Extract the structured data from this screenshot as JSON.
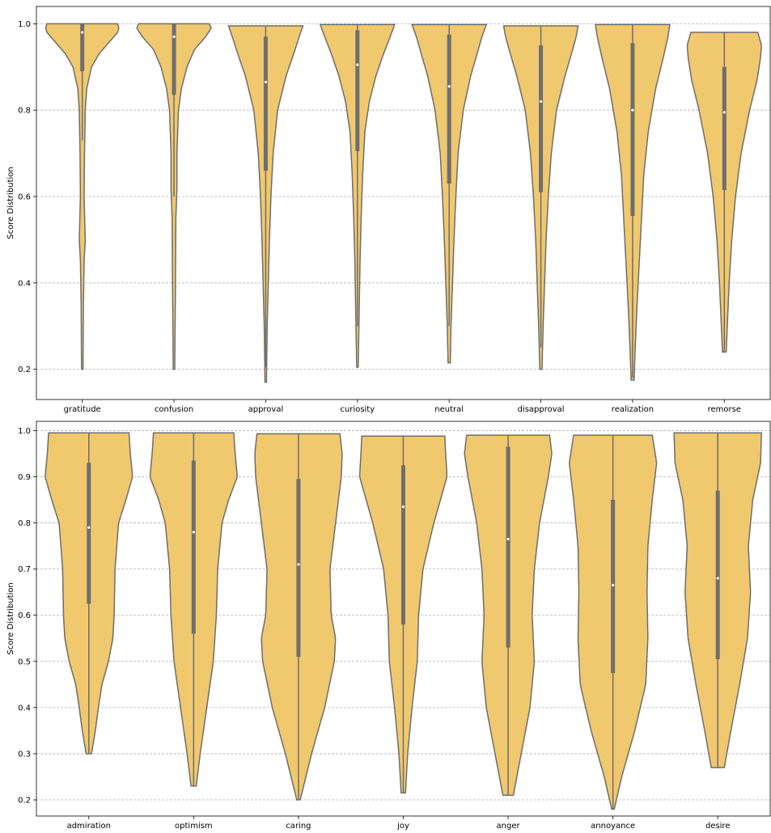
{
  "colors": {
    "violin_fill": "#f0c86e",
    "violin_edge": "#6e6e6e",
    "box": "#6e6e6e",
    "median_dot": "#ffffff",
    "grid": "#b0b0b0"
  },
  "chart_data": [
    {
      "type": "violin",
      "ylabel": "Score Distribution",
      "ylim": [
        0.13,
        1.04
      ],
      "yticks": [
        0.2,
        0.4,
        0.6,
        0.8,
        1.0
      ],
      "ytick_labels": [
        "0.2",
        "0.4",
        "0.6",
        "0.8",
        "1.0"
      ],
      "grid": "y-dashed",
      "categories": [
        "gratitude",
        "confusion",
        "approval",
        "curiosity",
        "neutral",
        "disapproval",
        "realization",
        "remorse"
      ],
      "series": [
        {
          "category": "gratitude",
          "min": 0.2,
          "q1": 0.89,
          "median": 0.98,
          "q3": 1.0,
          "max": 1.0,
          "whisker_low": 0.73,
          "whisker_high": 1.0,
          "density": [
            [
              0.2,
              0.02
            ],
            [
              0.35,
              0.03
            ],
            [
              0.45,
              0.05
            ],
            [
              0.5,
              0.08
            ],
            [
              0.6,
              0.05
            ],
            [
              0.7,
              0.06
            ],
            [
              0.8,
              0.08
            ],
            [
              0.85,
              0.12
            ],
            [
              0.9,
              0.25
            ],
            [
              0.93,
              0.45
            ],
            [
              0.96,
              0.75
            ],
            [
              0.98,
              0.95
            ],
            [
              0.995,
              1.0
            ],
            [
              1.0,
              0.95
            ]
          ]
        },
        {
          "category": "confusion",
          "min": 0.2,
          "q1": 0.835,
          "median": 0.97,
          "q3": 1.0,
          "max": 1.0,
          "whisker_low": 0.6,
          "whisker_high": 1.0,
          "density": [
            [
              0.2,
              0.02
            ],
            [
              0.4,
              0.04
            ],
            [
              0.55,
              0.05
            ],
            [
              0.62,
              0.08
            ],
            [
              0.7,
              0.08
            ],
            [
              0.8,
              0.12
            ],
            [
              0.85,
              0.2
            ],
            [
              0.9,
              0.35
            ],
            [
              0.94,
              0.55
            ],
            [
              0.97,
              0.85
            ],
            [
              0.99,
              1.0
            ],
            [
              1.0,
              0.95
            ]
          ]
        },
        {
          "category": "approval",
          "min": 0.17,
          "q1": 0.66,
          "median": 0.865,
          "q3": 0.97,
          "max": 0.995,
          "whisker_low": 0.205,
          "whisker_high": 0.995,
          "density": [
            [
              0.17,
              0.02
            ],
            [
              0.3,
              0.04
            ],
            [
              0.4,
              0.07
            ],
            [
              0.5,
              0.1
            ],
            [
              0.6,
              0.14
            ],
            [
              0.7,
              0.2
            ],
            [
              0.8,
              0.32
            ],
            [
              0.88,
              0.55
            ],
            [
              0.93,
              0.75
            ],
            [
              0.97,
              0.9
            ],
            [
              0.995,
              1.0
            ]
          ]
        },
        {
          "category": "curiosity",
          "min": 0.205,
          "q1": 0.705,
          "median": 0.905,
          "q3": 0.985,
          "max": 0.998,
          "whisker_low": 0.3,
          "whisker_high": 0.998,
          "density": [
            [
              0.205,
              0.02
            ],
            [
              0.3,
              0.04
            ],
            [
              0.45,
              0.07
            ],
            [
              0.55,
              0.1
            ],
            [
              0.65,
              0.14
            ],
            [
              0.75,
              0.2
            ],
            [
              0.82,
              0.32
            ],
            [
              0.88,
              0.5
            ],
            [
              0.93,
              0.7
            ],
            [
              0.97,
              0.88
            ],
            [
              0.998,
              1.0
            ]
          ]
        },
        {
          "category": "neutral",
          "min": 0.215,
          "q1": 0.63,
          "median": 0.855,
          "q3": 0.975,
          "max": 0.998,
          "whisker_low": 0.3,
          "whisker_high": 0.998,
          "density": [
            [
              0.215,
              0.03
            ],
            [
              0.3,
              0.05
            ],
            [
              0.4,
              0.09
            ],
            [
              0.5,
              0.13
            ],
            [
              0.6,
              0.18
            ],
            [
              0.7,
              0.24
            ],
            [
              0.8,
              0.38
            ],
            [
              0.88,
              0.58
            ],
            [
              0.93,
              0.75
            ],
            [
              0.97,
              0.88
            ],
            [
              0.998,
              1.0
            ]
          ]
        },
        {
          "category": "disapproval",
          "min": 0.2,
          "q1": 0.61,
          "median": 0.82,
          "q3": 0.95,
          "max": 0.995,
          "whisker_low": 0.25,
          "whisker_high": 0.995,
          "density": [
            [
              0.2,
              0.03
            ],
            [
              0.3,
              0.06
            ],
            [
              0.4,
              0.1
            ],
            [
              0.5,
              0.14
            ],
            [
              0.6,
              0.2
            ],
            [
              0.7,
              0.28
            ],
            [
              0.8,
              0.42
            ],
            [
              0.88,
              0.65
            ],
            [
              0.93,
              0.82
            ],
            [
              0.97,
              0.95
            ],
            [
              0.995,
              1.0
            ]
          ]
        },
        {
          "category": "realization",
          "min": 0.175,
          "q1": 0.555,
          "median": 0.8,
          "q3": 0.955,
          "max": 0.998,
          "whisker_low": 0.18,
          "whisker_high": 0.998,
          "density": [
            [
              0.175,
              0.04
            ],
            [
              0.25,
              0.07
            ],
            [
              0.35,
              0.12
            ],
            [
              0.45,
              0.18
            ],
            [
              0.55,
              0.24
            ],
            [
              0.65,
              0.3
            ],
            [
              0.75,
              0.42
            ],
            [
              0.85,
              0.62
            ],
            [
              0.92,
              0.82
            ],
            [
              0.97,
              0.95
            ],
            [
              0.998,
              1.0
            ]
          ]
        },
        {
          "category": "remorse",
          "min": 0.24,
          "q1": 0.615,
          "median": 0.795,
          "q3": 0.9,
          "max": 0.98,
          "whisker_low": 0.24,
          "whisker_high": 0.98,
          "density": [
            [
              0.24,
              0.05
            ],
            [
              0.3,
              0.08
            ],
            [
              0.4,
              0.13
            ],
            [
              0.5,
              0.2
            ],
            [
              0.6,
              0.3
            ],
            [
              0.7,
              0.45
            ],
            [
              0.8,
              0.68
            ],
            [
              0.87,
              0.88
            ],
            [
              0.92,
              0.97
            ],
            [
              0.95,
              1.0
            ],
            [
              0.98,
              0.9
            ]
          ]
        }
      ]
    },
    {
      "type": "violin",
      "ylabel": "Score Distribution",
      "ylim": [
        0.165,
        1.02
      ],
      "yticks": [
        0.2,
        0.3,
        0.4,
        0.5,
        0.6,
        0.7,
        0.8,
        0.9,
        1.0
      ],
      "ytick_labels": [
        "0.2",
        "0.3",
        "0.4",
        "0.5",
        "0.6",
        "0.7",
        "0.8",
        "0.9",
        "1.0"
      ],
      "grid": "y-dashed",
      "categories": [
        "admiration",
        "optimism",
        "caring",
        "joy",
        "anger",
        "annoyance",
        "desire"
      ],
      "series": [
        {
          "category": "admiration",
          "min": 0.3,
          "q1": 0.625,
          "median": 0.79,
          "q3": 0.93,
          "max": 0.995,
          "whisker_low": 0.3,
          "whisker_high": 0.995,
          "density": [
            [
              0.3,
              0.06
            ],
            [
              0.35,
              0.15
            ],
            [
              0.4,
              0.22
            ],
            [
              0.45,
              0.3
            ],
            [
              0.5,
              0.45
            ],
            [
              0.55,
              0.55
            ],
            [
              0.6,
              0.58
            ],
            [
              0.7,
              0.6
            ],
            [
              0.8,
              0.68
            ],
            [
              0.85,
              0.85
            ],
            [
              0.9,
              1.0
            ],
            [
              0.95,
              0.95
            ],
            [
              0.995,
              0.92
            ]
          ]
        },
        {
          "category": "optimism",
          "min": 0.23,
          "q1": 0.56,
          "median": 0.78,
          "q3": 0.935,
          "max": 0.995,
          "whisker_low": 0.23,
          "whisker_high": 0.995,
          "density": [
            [
              0.23,
              0.06
            ],
            [
              0.3,
              0.15
            ],
            [
              0.4,
              0.3
            ],
            [
              0.5,
              0.45
            ],
            [
              0.6,
              0.52
            ],
            [
              0.7,
              0.55
            ],
            [
              0.8,
              0.65
            ],
            [
              0.85,
              0.8
            ],
            [
              0.9,
              1.0
            ],
            [
              0.95,
              0.95
            ],
            [
              0.995,
              0.92
            ]
          ]
        },
        {
          "category": "caring",
          "min": 0.2,
          "q1": 0.51,
          "median": 0.71,
          "q3": 0.895,
          "max": 0.993,
          "whisker_low": 0.2,
          "whisker_high": 0.993,
          "density": [
            [
              0.2,
              0.04
            ],
            [
              0.3,
              0.3
            ],
            [
              0.4,
              0.6
            ],
            [
              0.5,
              0.82
            ],
            [
              0.55,
              0.85
            ],
            [
              0.6,
              0.75
            ],
            [
              0.7,
              0.72
            ],
            [
              0.8,
              0.85
            ],
            [
              0.9,
              0.98
            ],
            [
              0.95,
              1.0
            ],
            [
              0.993,
              0.95
            ]
          ]
        },
        {
          "category": "joy",
          "min": 0.215,
          "q1": 0.58,
          "median": 0.835,
          "q3": 0.925,
          "max": 0.988,
          "whisker_low": 0.215,
          "whisker_high": 0.988,
          "density": [
            [
              0.215,
              0.05
            ],
            [
              0.3,
              0.1
            ],
            [
              0.4,
              0.2
            ],
            [
              0.5,
              0.32
            ],
            [
              0.6,
              0.35
            ],
            [
              0.7,
              0.45
            ],
            [
              0.8,
              0.7
            ],
            [
              0.9,
              1.0
            ],
            [
              0.95,
              0.97
            ],
            [
              0.988,
              0.95
            ]
          ]
        },
        {
          "category": "anger",
          "min": 0.21,
          "q1": 0.53,
          "median": 0.765,
          "q3": 0.965,
          "max": 0.99,
          "whisker_low": 0.21,
          "whisker_high": 0.99,
          "density": [
            [
              0.21,
              0.12
            ],
            [
              0.3,
              0.3
            ],
            [
              0.4,
              0.5
            ],
            [
              0.5,
              0.6
            ],
            [
              0.6,
              0.55
            ],
            [
              0.7,
              0.6
            ],
            [
              0.8,
              0.72
            ],
            [
              0.9,
              0.92
            ],
            [
              0.95,
              1.0
            ],
            [
              0.99,
              0.95
            ]
          ]
        },
        {
          "category": "annoyance",
          "min": 0.18,
          "q1": 0.475,
          "median": 0.665,
          "q3": 0.85,
          "max": 0.99,
          "whisker_low": 0.18,
          "whisker_high": 0.99,
          "density": [
            [
              0.18,
              0.03
            ],
            [
              0.25,
              0.2
            ],
            [
              0.35,
              0.5
            ],
            [
              0.45,
              0.75
            ],
            [
              0.55,
              0.8
            ],
            [
              0.65,
              0.78
            ],
            [
              0.75,
              0.8
            ],
            [
              0.85,
              0.9
            ],
            [
              0.93,
              1.0
            ],
            [
              0.99,
              0.9
            ]
          ]
        },
        {
          "category": "desire",
          "min": 0.27,
          "q1": 0.505,
          "median": 0.68,
          "q3": 0.87,
          "max": 0.995,
          "whisker_low": 0.27,
          "whisker_high": 0.995,
          "density": [
            [
              0.27,
              0.15
            ],
            [
              0.35,
              0.3
            ],
            [
              0.45,
              0.5
            ],
            [
              0.55,
              0.68
            ],
            [
              0.65,
              0.75
            ],
            [
              0.75,
              0.7
            ],
            [
              0.85,
              0.8
            ],
            [
              0.93,
              0.98
            ],
            [
              0.995,
              1.0
            ]
          ]
        }
      ]
    }
  ]
}
